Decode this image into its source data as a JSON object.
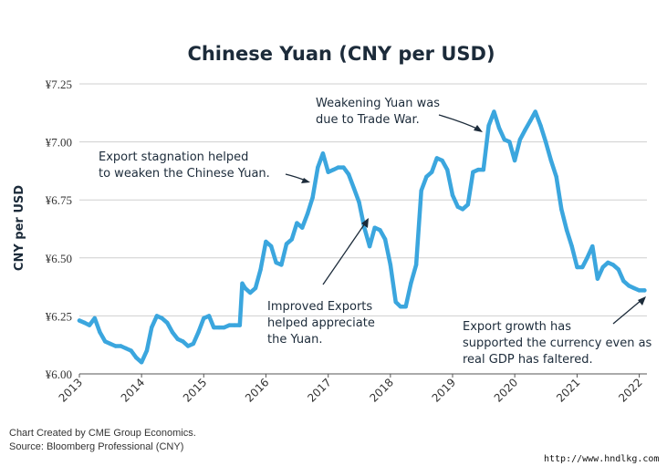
{
  "chart_data": {
    "type": "line",
    "title": "Chinese Yuan (CNY per USD)",
    "xlabel": "",
    "ylabel": "CNY per USD",
    "ylim": [
      6.0,
      7.25
    ],
    "xlim": [
      "2013-01-01",
      "2022-02-15"
    ],
    "y_ticks": [
      {
        "value": 6.0,
        "label": "¥6.00"
      },
      {
        "value": 6.25,
        "label": "¥6.25"
      },
      {
        "value": 6.5,
        "label": "¥6.50"
      },
      {
        "value": 6.75,
        "label": "¥6.75"
      },
      {
        "value": 7.0,
        "label": "¥7.00"
      },
      {
        "value": 7.25,
        "label": "¥7.25"
      }
    ],
    "x_ticks": [
      "2013",
      "2014",
      "2015",
      "2016",
      "2017",
      "2018",
      "2019",
      "2020",
      "2021",
      "2022"
    ],
    "grid": "horizontal",
    "line_color": "#3ba6de",
    "series": [
      {
        "x": [
          "2013-01-01",
          "2013-02-01",
          "2013-03-01",
          "2013-04-01",
          "2013-05-01",
          "2013-06-01",
          "2013-07-01",
          "2013-08-01",
          "2013-09-01",
          "2013-10-01",
          "2013-11-01",
          "2013-12-01",
          "2014-01-01",
          "2014-02-01",
          "2014-03-01",
          "2014-04-01",
          "2014-05-01",
          "2014-06-01",
          "2014-07-01",
          "2014-08-01",
          "2014-09-01",
          "2014-10-01",
          "2014-11-01",
          "2014-12-01",
          "2015-01-01",
          "2015-02-01",
          "2015-03-01",
          "2015-04-01",
          "2015-05-01",
          "2015-06-01",
          "2015-07-01",
          "2015-08-01",
          "2015-08-15",
          "2015-09-01",
          "2015-10-01",
          "2015-11-01",
          "2015-12-01",
          "2016-01-01",
          "2016-02-01",
          "2016-03-01",
          "2016-04-01",
          "2016-05-01",
          "2016-06-01",
          "2016-07-01",
          "2016-08-01",
          "2016-09-01",
          "2016-10-01",
          "2016-11-01",
          "2016-12-01",
          "2017-01-01",
          "2017-02-01",
          "2017-03-01",
          "2017-04-01",
          "2017-05-01",
          "2017-06-01",
          "2017-07-01",
          "2017-08-01",
          "2017-09-01",
          "2017-10-01",
          "2017-11-01",
          "2017-12-01",
          "2018-01-01",
          "2018-02-01",
          "2018-03-01",
          "2018-04-01",
          "2018-05-01",
          "2018-06-01",
          "2018-07-01",
          "2018-08-01",
          "2018-09-01",
          "2018-10-01",
          "2018-11-01",
          "2018-12-01",
          "2019-01-01",
          "2019-02-01",
          "2019-03-01",
          "2019-04-01",
          "2019-05-01",
          "2019-06-01",
          "2019-07-01",
          "2019-08-01",
          "2019-09-01",
          "2019-10-01",
          "2019-11-01",
          "2019-12-01",
          "2020-01-01",
          "2020-02-01",
          "2020-03-01",
          "2020-04-01",
          "2020-05-01",
          "2020-06-01",
          "2020-07-01",
          "2020-08-01",
          "2020-09-01",
          "2020-10-01",
          "2020-11-01",
          "2020-12-01",
          "2021-01-01",
          "2021-02-01",
          "2021-03-01",
          "2021-04-01",
          "2021-05-01",
          "2021-06-01",
          "2021-07-01",
          "2021-08-01",
          "2021-09-01",
          "2021-10-01",
          "2021-11-01",
          "2021-12-01",
          "2022-01-01",
          "2022-02-01"
        ],
        "y": [
          6.23,
          6.22,
          6.21,
          6.24,
          6.18,
          6.14,
          6.13,
          6.12,
          6.12,
          6.11,
          6.1,
          6.07,
          6.05,
          6.1,
          6.2,
          6.25,
          6.24,
          6.22,
          6.18,
          6.15,
          6.14,
          6.12,
          6.13,
          6.18,
          6.24,
          6.25,
          6.2,
          6.2,
          6.2,
          6.21,
          6.21,
          6.21,
          6.39,
          6.37,
          6.35,
          6.37,
          6.45,
          6.57,
          6.55,
          6.48,
          6.47,
          6.56,
          6.58,
          6.65,
          6.63,
          6.69,
          6.76,
          6.89,
          6.95,
          6.87,
          6.88,
          6.89,
          6.89,
          6.86,
          6.8,
          6.74,
          6.63,
          6.55,
          6.63,
          6.62,
          6.58,
          6.47,
          6.31,
          6.29,
          6.29,
          6.39,
          6.47,
          6.79,
          6.85,
          6.87,
          6.93,
          6.92,
          6.88,
          6.77,
          6.72,
          6.71,
          6.73,
          6.87,
          6.88,
          6.88,
          7.07,
          7.13,
          7.06,
          7.01,
          7.0,
          6.92,
          7.01,
          7.05,
          7.09,
          7.13,
          7.07,
          7.0,
          6.92,
          6.85,
          6.71,
          6.62,
          6.55,
          6.46,
          6.46,
          6.5,
          6.55,
          6.41,
          6.46,
          6.48,
          6.47,
          6.45,
          6.4,
          6.38,
          6.37,
          6.36,
          6.36
        ]
      }
    ],
    "annotations": [
      {
        "lines": [
          "Weakening Yuan was",
          "due to Trade War."
        ]
      },
      {
        "lines": [
          "Export stagnation helped",
          "to weaken the Chinese Yuan."
        ]
      },
      {
        "lines": [
          "Improved Exports",
          "helped appreciate",
          "the Yuan."
        ]
      },
      {
        "lines": [
          "Export growth has",
          "supported the currency even as",
          "real GDP has faltered."
        ]
      }
    ]
  },
  "footer": {
    "line1": "Chart Created by CME Group Economics.",
    "line2": "Source:  Bloomberg Professional (CNY)"
  },
  "watermark": "http://www.hndlkg.com"
}
